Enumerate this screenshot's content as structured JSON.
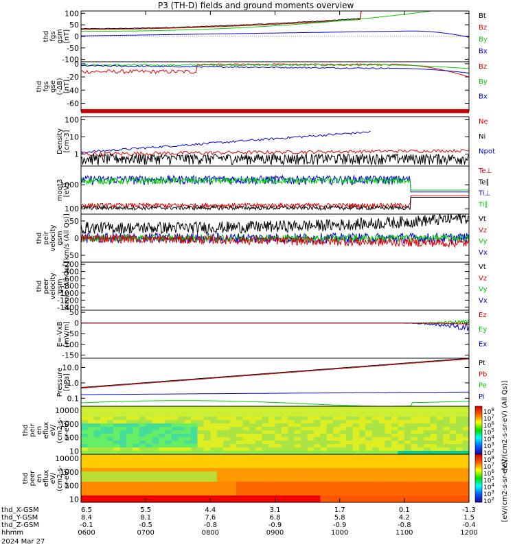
{
  "title": "P3 (TH-D) fields and ground moments overview",
  "date_label": "2024 Mar 27",
  "chart_data": [
    {
      "type": "line",
      "panel": "fgs_gsm",
      "ylabel_lines": [
        "thd",
        "fgs",
        "gsm",
        "[nT]"
      ],
      "yticks": [
        100,
        50,
        0,
        -50,
        -100
      ],
      "ylim": [
        -110,
        110
      ],
      "legend": [
        "Bt",
        "Bz",
        "By",
        "Bx"
      ],
      "legend_colors": [
        "#000000",
        "#dd0000",
        "#00cc00",
        "#0000dd"
      ]
    },
    {
      "type": "line",
      "panel": "fgs_gse",
      "ylabel_lines": [
        "thd",
        "fgs",
        "gse",
        "(-ΔB)",
        "[nT]"
      ],
      "yticks": [
        0,
        -20,
        -40,
        -60
      ],
      "ylim": [
        -72,
        3
      ],
      "legend": [
        "Bz",
        "By",
        "Bx"
      ],
      "legend_colors": [
        "#dd0000",
        "#00cc00",
        "#0000dd"
      ]
    },
    {
      "type": "line",
      "panel": "density",
      "scale": "log",
      "ylabel_lines": [
        "Density",
        "[cm-3]"
      ],
      "yticks": [
        "100",
        "10",
        "1"
      ],
      "ylim": [
        0.2,
        150
      ],
      "legend": [
        "Ne",
        "Ni",
        "Npot"
      ],
      "legend_colors": [
        "#dd0000",
        "#000000",
        "#0000dd"
      ]
    },
    {
      "type": "line",
      "panel": "temperature",
      "scale": "log",
      "ylabel_lines": [
        "moqt3",
        "[eV]"
      ],
      "yticks": [
        "1000",
        "100"
      ],
      "ylim": [
        60,
        6000
      ],
      "legend": [
        "Te⊥",
        "Te∥",
        "Ti⊥",
        "Ti∥"
      ],
      "legend_colors": [
        "#dd0000",
        "#000000",
        "#0000dd",
        "#00cc00"
      ]
    },
    {
      "type": "line",
      "panel": "peir_velocity",
      "ylabel_lines": [
        "thd",
        "peir",
        "velocity",
        "gsm",
        "[km/s (All Qs)]"
      ],
      "yticks": [
        50,
        0,
        -50
      ],
      "ylim": [
        -70,
        70
      ],
      "legend": [
        "Vt",
        "Vz",
        "Vy",
        "Vx"
      ],
      "legend_colors": [
        "#000000",
        "#dd0000",
        "#00cc00",
        "#0000dd"
      ]
    },
    {
      "type": "line",
      "panel": "peer_velocity",
      "ylabel_lines": [
        "thd",
        "peer",
        "velocity",
        "gsm",
        "[km/s (All Qs)]"
      ],
      "yticks": [
        -200,
        -400,
        -600,
        -800,
        -1000,
        -1200,
        -1400
      ],
      "ylim": [
        -1480,
        -140
      ],
      "legend": [
        "Vt",
        "Vz",
        "Vy",
        "Vx"
      ],
      "legend_colors": [
        "#000000",
        "#dd0000",
        "#00cc00",
        "#0000dd"
      ]
    },
    {
      "type": "line",
      "panel": "e_field",
      "ylabel_lines": [
        "E=-VxB",
        "[mV/m]"
      ],
      "yticks": [
        50,
        0,
        -50,
        -100,
        -150
      ],
      "ylim": [
        -165,
        60
      ],
      "legend": [
        "Ez",
        "Ey",
        "Ex"
      ],
      "legend_colors": [
        "#dd0000",
        "#00cc00",
        "#0000dd"
      ]
    },
    {
      "type": "line",
      "panel": "pressure",
      "scale": "log",
      "ylabel_lines": [
        "Pressure",
        "[nPa]"
      ],
      "yticks": [
        "10.0",
        "1.0",
        "0.1"
      ],
      "ylim": [
        0.03,
        40
      ],
      "legend": [
        "Pt",
        "Pb",
        "Pe",
        "Pi"
      ],
      "legend_colors": [
        "#000000",
        "#dd0000",
        "#00cc00",
        "#0000dd"
      ]
    },
    {
      "type": "heatmap",
      "panel": "peir_eflux",
      "scale": "log",
      "ylabel_lines": [
        "thd",
        "peir",
        "en",
        "eflux",
        "eV/",
        "(cm2-s-",
        "sr-eV)"
      ],
      "yticks": [
        "10000",
        "1000",
        "100",
        "10"
      ],
      "ylim": [
        6,
        20000
      ]
    },
    {
      "type": "heatmap",
      "panel": "peer_eflux",
      "scale": "log",
      "ylabel_lines": [
        "thd",
        "peer",
        "en",
        "eflux",
        "eV/",
        "(cm2-s-",
        "sr-eV)"
      ],
      "yticks": [
        "10000",
        "1000",
        "100",
        "10"
      ],
      "ylim": [
        6,
        20000
      ]
    }
  ],
  "colorbar": {
    "labels": [
      "10^8",
      "10^7",
      "10^6",
      "10^5",
      "10^4",
      "10^3",
      "10^2"
    ],
    "upper_title": "[eV/(cm2-s-sr-eV) (All Qs)]",
    "lower_title": "[eV/(cm2-s-sr-eV)]"
  },
  "x_axis": {
    "rows": [
      {
        "name": "thd_X-GSM",
        "values": [
          "6.5",
          "5.5",
          "4.4",
          "3.1",
          "1.7",
          "0.1",
          "-1.3"
        ]
      },
      {
        "name": "thd_Y-GSM",
        "values": [
          "8.4",
          "8.1",
          "7.6",
          "6.8",
          "5.8",
          "4.2",
          "1.5"
        ]
      },
      {
        "name": "thd_Z-GSM",
        "values": [
          "-0.1",
          "-0.5",
          "-0.8",
          "-0.9",
          "-0.9",
          "-0.8",
          "-0.4"
        ]
      },
      {
        "name": "hhmm",
        "values": [
          "0600",
          "0700",
          "0800",
          "0900",
          "1000",
          "1100",
          "1200"
        ]
      }
    ]
  }
}
